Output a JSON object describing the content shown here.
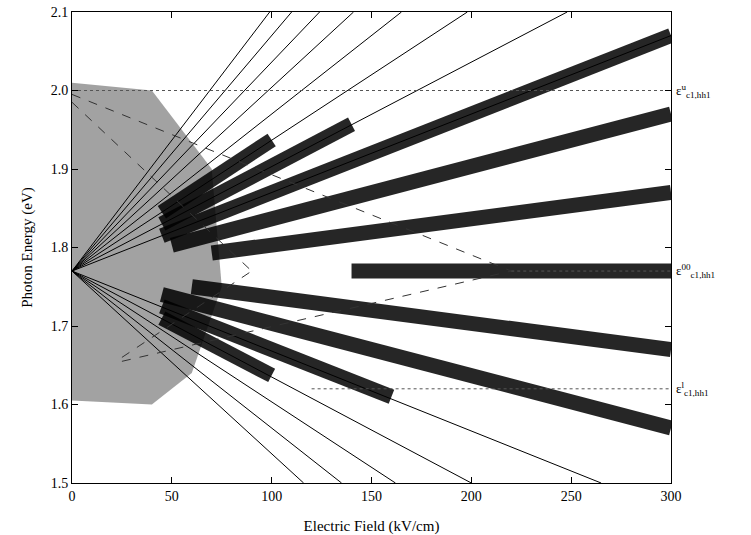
{
  "chart_data": {
    "type": "line",
    "x_label": "Electric Field (kV/cm)",
    "y_label": "Photon Energy (eV)",
    "xlim": [
      0,
      300
    ],
    "ylim": [
      1.5,
      2.1
    ],
    "xticks": [
      0,
      50,
      100,
      150,
      200,
      250,
      300
    ],
    "yticks": [
      1.5,
      1.6,
      1.7,
      1.8,
      1.9,
      {
        "value": 2,
        "label": "2.0"
      },
      2.1
    ],
    "grid": false,
    "annotations": [
      {
        "text": "ε",
        "sup": "u",
        "sub": "c1,hh1",
        "y": 2.0
      },
      {
        "text": "ε",
        "sup": "00",
        "sub": "c1,hh1",
        "y": 1.77
      },
      {
        "text": "ε",
        "sup": "l",
        "sub": "c1,hh1",
        "y": 1.62
      }
    ],
    "series": [
      {
        "type": "area",
        "color": "#555555",
        "x": [
          0,
          0,
          40,
          70,
          75,
          60,
          40
        ],
        "values": [
          1.605,
          2.01,
          2.0,
          1.9,
          1.75,
          1.64,
          1.6
        ]
      },
      {
        "type": "band",
        "color": "#000000",
        "x": [
          45,
          100
        ],
        "values": [
          1.845,
          1.937
        ]
      },
      {
        "type": "band",
        "color": "#000000",
        "x": [
          45,
          140
        ],
        "values": [
          1.83,
          1.957
        ]
      },
      {
        "type": "band",
        "color": "#000000",
        "x": [
          45,
          300
        ],
        "values": [
          1.815,
          2.07
        ]
      },
      {
        "type": "band",
        "color": "#000000",
        "x": [
          50,
          300
        ],
        "values": [
          1.803,
          1.97
        ]
      },
      {
        "type": "band",
        "color": "#000000",
        "x": [
          70,
          300
        ],
        "values": [
          1.793,
          1.87
        ]
      },
      {
        "type": "band",
        "color": "#000000",
        "x": [
          140,
          300
        ],
        "values": [
          1.77,
          1.77
        ]
      },
      {
        "type": "band",
        "color": "#000000",
        "x": [
          60,
          300
        ],
        "values": [
          1.75,
          1.67
        ]
      },
      {
        "type": "band",
        "color": "#000000",
        "x": [
          45,
          300
        ],
        "values": [
          1.74,
          1.57
        ]
      },
      {
        "type": "band",
        "color": "#000000",
        "x": [
          45,
          160
        ],
        "values": [
          1.725,
          1.61
        ]
      },
      {
        "type": "band",
        "color": "#000000",
        "x": [
          45,
          100
        ],
        "values": [
          1.71,
          1.637
        ]
      },
      {
        "type": "line",
        "line_style": "solid",
        "color": "#000000",
        "x": [
          0,
          265
        ],
        "values": [
          1.77,
          1.5
        ]
      },
      {
        "type": "line",
        "line_style": "solid",
        "color": "#000000",
        "x": [
          0,
          200
        ],
        "values": [
          1.77,
          1.5
        ]
      },
      {
        "type": "line",
        "line_style": "solid",
        "color": "#000000",
        "x": [
          0,
          162
        ],
        "values": [
          1.77,
          1.5
        ]
      },
      {
        "type": "line",
        "line_style": "solid",
        "color": "#000000",
        "x": [
          0,
          135
        ],
        "values": [
          1.77,
          1.5
        ]
      },
      {
        "type": "line",
        "line_style": "solid",
        "color": "#000000",
        "x": [
          0,
          116
        ],
        "values": [
          1.77,
          1.5
        ]
      },
      {
        "type": "line",
        "line_style": "solid",
        "color": "#000000",
        "x": [
          0,
          300
        ],
        "values": [
          1.77,
          2.07
        ]
      },
      {
        "type": "line",
        "line_style": "solid",
        "color": "#000000",
        "x": [
          0,
          248
        ],
        "values": [
          1.77,
          2.1
        ]
      },
      {
        "type": "line",
        "line_style": "solid",
        "color": "#000000",
        "x": [
          0,
          198
        ],
        "values": [
          1.77,
          2.1
        ]
      },
      {
        "type": "line",
        "line_style": "solid",
        "color": "#000000",
        "x": [
          0,
          165
        ],
        "values": [
          1.77,
          2.1
        ]
      },
      {
        "type": "line",
        "line_style": "solid",
        "color": "#000000",
        "x": [
          0,
          141
        ],
        "values": [
          1.77,
          2.1
        ]
      },
      {
        "type": "line",
        "line_style": "solid",
        "color": "#000000",
        "x": [
          0,
          124
        ],
        "values": [
          1.77,
          2.1
        ]
      },
      {
        "type": "line",
        "line_style": "solid",
        "color": "#000000",
        "x": [
          0,
          110
        ],
        "values": [
          1.77,
          2.1
        ]
      },
      {
        "type": "line",
        "line_style": "solid",
        "color": "#000000",
        "x": [
          0,
          99
        ],
        "values": [
          1.77,
          2.1
        ]
      },
      {
        "type": "line",
        "line_style": "dashed",
        "color": "#333333",
        "x": [
          0,
          220
        ],
        "values": [
          1.995,
          1.77
        ]
      },
      {
        "type": "line",
        "line_style": "dashed",
        "color": "#333333",
        "x": [
          25,
          220
        ],
        "values": [
          1.655,
          1.77
        ]
      },
      {
        "type": "line",
        "line_style": "dashed",
        "color": "#333333",
        "x": [
          0,
          90
        ],
        "values": [
          1.985,
          1.77
        ]
      },
      {
        "type": "line",
        "line_style": "dashed",
        "color": "#333333",
        "x": [
          25,
          90
        ],
        "values": [
          1.66,
          1.77
        ]
      },
      {
        "type": "line",
        "line_style": "dotted",
        "color": "#555555",
        "x": [
          0,
          300
        ],
        "values": [
          2.0,
          2.0
        ]
      },
      {
        "type": "line",
        "line_style": "dotted",
        "color": "#555555",
        "x": [
          220,
          300
        ],
        "values": [
          1.77,
          1.77
        ]
      },
      {
        "type": "line",
        "line_style": "dotted",
        "color": "#555555",
        "x": [
          120,
          300
        ],
        "values": [
          1.62,
          1.62
        ]
      }
    ]
  }
}
